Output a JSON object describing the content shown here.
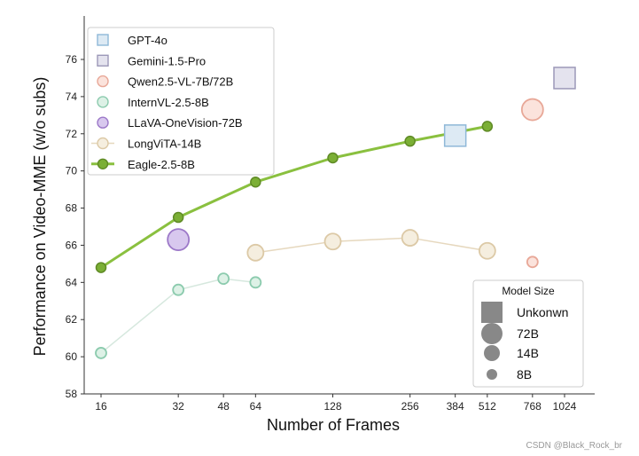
{
  "chart_data": {
    "type": "scatter",
    "title": "",
    "xlabel": "Number of Frames",
    "ylabel": "Performance on Video-MME (w/o subs)",
    "x_scale": "log2",
    "xlim": [
      16,
      1024
    ],
    "ylim": [
      58,
      77
    ],
    "x_ticks": [
      16,
      32,
      48,
      64,
      128,
      256,
      384,
      512,
      768,
      1024
    ],
    "x_tick_labels": [
      "16",
      "32",
      "48",
      "64",
      "128",
      "256",
      "384",
      "512",
      "768",
      "1024"
    ],
    "y_ticks": [
      58,
      60,
      62,
      64,
      66,
      68,
      70,
      72,
      74,
      76
    ],
    "y_tick_labels": [
      "58",
      "60",
      "62",
      "64",
      "66",
      "68",
      "70",
      "72",
      "74",
      "76"
    ],
    "grid": true,
    "legend_position": "top-left",
    "series": [
      {
        "name": "GPT-4o",
        "marker": "square",
        "model_size": "Unkonwn",
        "color": "#8FB8D8",
        "fill": "#DDEAF4",
        "connected": false,
        "points": [
          {
            "x": 384,
            "y": 71.9
          }
        ]
      },
      {
        "name": "Gemini-1.5-Pro",
        "marker": "square",
        "model_size": "Unkonwn",
        "color": "#9C98B8",
        "fill": "#E4E3EE",
        "connected": false,
        "points": [
          {
            "x": 1024,
            "y": 75.0
          }
        ]
      },
      {
        "name": "Qwen2.5-VL-7B/72B",
        "marker": "circle",
        "color": "#E8A898",
        "fill": "#FBE3DC",
        "connected": false,
        "points": [
          {
            "x": 768,
            "y": 65.1,
            "model_size": "8B"
          },
          {
            "x": 768,
            "y": 73.3,
            "model_size": "72B"
          }
        ]
      },
      {
        "name": "InternVL-2.5-8B",
        "marker": "circle",
        "model_size": "8B",
        "color": "#8CCBAE",
        "fill": "#DDF1E6",
        "connected": true,
        "line_color": "#D6E8DE",
        "points": [
          {
            "x": 16,
            "y": 60.2
          },
          {
            "x": 32,
            "y": 63.6
          },
          {
            "x": 48,
            "y": 64.2
          },
          {
            "x": 64,
            "y": 64.0
          }
        ]
      },
      {
        "name": "LLaVA-OneVision-72B",
        "marker": "circle",
        "model_size": "72B",
        "color": "#9C78C8",
        "fill": "#D8C8EE",
        "connected": false,
        "points": [
          {
            "x": 32,
            "y": 66.3
          }
        ]
      },
      {
        "name": "LongViTA-14B",
        "marker": "circle",
        "model_size": "14B",
        "color": "#DCC9A6",
        "fill": "#F5EEDF",
        "connected": true,
        "line_color": "#E6D8BE",
        "points": [
          {
            "x": 64,
            "y": 65.6
          },
          {
            "x": 128,
            "y": 66.2
          },
          {
            "x": 256,
            "y": 66.4
          },
          {
            "x": 512,
            "y": 65.7
          }
        ]
      },
      {
        "name": "Eagle-2.5-8B",
        "marker": "circle",
        "model_size": "8B",
        "color": "#5F8A25",
        "fill": "#7BAF35",
        "connected": true,
        "line_color": "#8AC03F",
        "points": [
          {
            "x": 16,
            "y": 64.8
          },
          {
            "x": 32,
            "y": 67.5
          },
          {
            "x": 64,
            "y": 69.4
          },
          {
            "x": 128,
            "y": 70.7
          },
          {
            "x": 256,
            "y": 71.6
          },
          {
            "x": 512,
            "y": 72.4
          }
        ]
      }
    ],
    "size_legend": {
      "title": "Model Size",
      "position": "bottom-right",
      "entries": [
        {
          "label": "Unkonwn",
          "marker": "square"
        },
        {
          "label": "72B",
          "marker": "circle"
        },
        {
          "label": "14B",
          "marker": "circle"
        },
        {
          "label": "8B",
          "marker": "circle"
        }
      ]
    },
    "watermark": "CSDN @Black_Rock_br"
  }
}
